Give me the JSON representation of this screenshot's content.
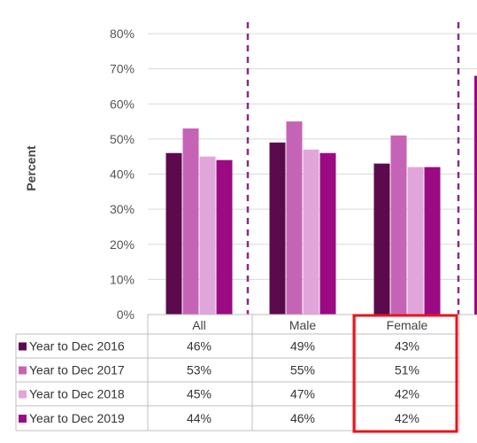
{
  "chart_data": {
    "type": "bar",
    "ylabel": "Percent",
    "ylim": [
      0,
      80
    ],
    "yticks": [
      "0%",
      "10%",
      "20%",
      "30%",
      "40%",
      "50%",
      "60%",
      "70%",
      "80%"
    ],
    "grid": true,
    "categories": [
      "All",
      "Male",
      "Female"
    ],
    "series": [
      {
        "name": "Year to Dec 2016",
        "values": [
          46,
          49,
          43
        ],
        "labels": [
          "46%",
          "49%",
          "43%"
        ],
        "color": "#5c0a4e"
      },
      {
        "name": "Year to Dec 2017",
        "values": [
          53,
          55,
          51
        ],
        "labels": [
          "53%",
          "55%",
          "51%"
        ],
        "color": "#c564b6"
      },
      {
        "name": "Year to Dec 2018",
        "values": [
          45,
          47,
          42
        ],
        "labels": [
          "45%",
          "47%",
          "42%"
        ],
        "color": "#e1a6d9"
      },
      {
        "name": "Year to Dec 2019",
        "values": [
          44,
          46,
          42
        ],
        "labels": [
          "44%",
          "46%",
          "42%"
        ],
        "color": "#9b0a82"
      }
    ],
    "legend": "data-table",
    "highlight": {
      "category": "Female",
      "color": "#e8141b"
    },
    "divider_color": "#8a2a85"
  }
}
